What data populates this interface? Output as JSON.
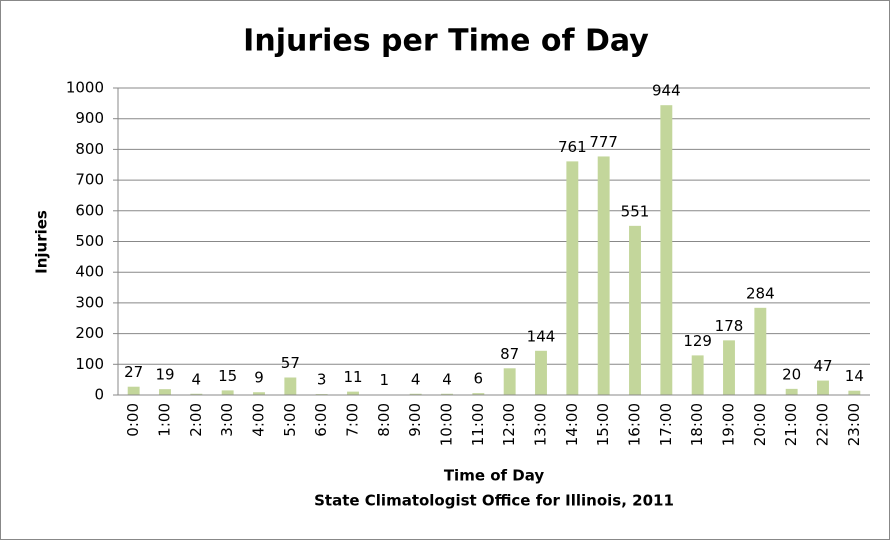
{
  "chart_data": {
    "type": "bar",
    "title": "Injuries per Time of Day",
    "x_label": "Time of Day",
    "y_label": "Injuries",
    "source": "State Climatologist Office for Illinois, 2011",
    "categories": [
      "0:00",
      "1:00",
      "2:00",
      "3:00",
      "4:00",
      "5:00",
      "6:00",
      "7:00",
      "8:00",
      "9:00",
      "10:00",
      "11:00",
      "12:00",
      "13:00",
      "14:00",
      "15:00",
      "16:00",
      "17:00",
      "18:00",
      "19:00",
      "20:00",
      "21:00",
      "22:00",
      "23:00"
    ],
    "values": [
      27,
      19,
      4,
      15,
      9,
      57,
      3,
      11,
      1,
      4,
      4,
      6,
      87,
      144,
      761,
      777,
      551,
      944,
      129,
      178,
      284,
      20,
      47,
      14
    ],
    "color": "#c3d69b",
    "ylim": [
      0,
      1000
    ],
    "yticks": [
      0,
      100,
      200,
      300,
      400,
      500,
      600,
      700,
      800,
      900,
      1000
    ],
    "grid": true
  }
}
